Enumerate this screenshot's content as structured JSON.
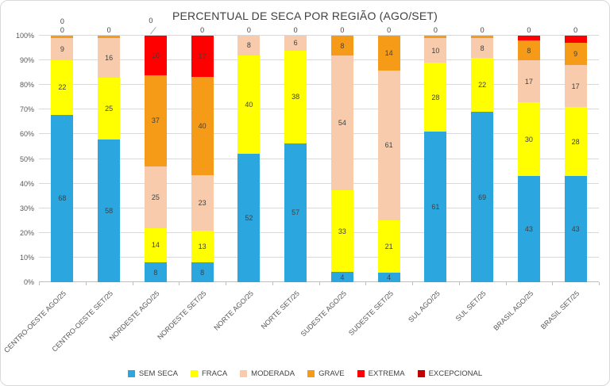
{
  "chart_data": {
    "type": "bar",
    "stacked": true,
    "percent": true,
    "title": "PERCENTUAL DE SECA POR REGIÃO (AGO/SET)",
    "categories": [
      "CENTRO-OESTE AGO/25",
      "CENTRO-OESTE SET/25",
      "NORDESTE AGO/25",
      "NORDESTE SET/25",
      "NORTE AGO/25",
      "NORTE SET/25",
      "SUDESTE AGO/25",
      "SUDESTE SET/25",
      "SUL AGO/25",
      "SUL SET/25",
      "BRASIL AGO/25",
      "BRASIL SET/25"
    ],
    "series": [
      {
        "name": "SEM SECA",
        "color": "#2BA6DE",
        "values": [
          68,
          58,
          8,
          8,
          52,
          57,
          4,
          4,
          61,
          69,
          43,
          43
        ]
      },
      {
        "name": "FRACA",
        "color": "#FFFF00",
        "values": [
          22,
          25,
          14,
          13,
          40,
          38,
          33,
          21,
          28,
          22,
          30,
          28
        ]
      },
      {
        "name": "MODERADA",
        "color": "#F8CBAD",
        "values": [
          9,
          16,
          25,
          23,
          8,
          6,
          54,
          61,
          10,
          8,
          17,
          17
        ]
      },
      {
        "name": "GRAVE",
        "color": "#F59B18",
        "values": [
          1,
          1,
          37,
          40,
          0,
          0,
          8,
          14,
          1,
          1,
          8,
          9
        ]
      },
      {
        "name": "EXTREMA",
        "color": "#FE0000",
        "values": [
          0,
          0,
          16,
          17,
          0,
          0,
          0,
          0,
          0,
          0,
          2,
          3
        ]
      },
      {
        "name": "EXCEPCIONAL",
        "color": "#C00000",
        "values": [
          0,
          0,
          0,
          0,
          0,
          0,
          0,
          0,
          0,
          0,
          0,
          0
        ]
      }
    ],
    "above_labels": [
      [
        "0",
        "0"
      ],
      [
        "0"
      ],
      [
        "0"
      ],
      [
        "0"
      ],
      [
        "0"
      ],
      [
        "0"
      ],
      [
        "0"
      ],
      [
        "0"
      ],
      [
        "0"
      ],
      [
        "0"
      ],
      [
        "0"
      ],
      [
        "0"
      ]
    ],
    "callout_index": 2,
    "y_ticks": [
      "0%",
      "10%",
      "20%",
      "30%",
      "40%",
      "50%",
      "60%",
      "70%",
      "80%",
      "90%",
      "100%"
    ],
    "ylim": [
      0,
      100
    ],
    "grid": true,
    "label_threshold": 4,
    "legend_position": "bottom",
    "colors": {
      "grid": "#D9D9D9",
      "axis": "#BFBFBF",
      "tick_text": "#595959",
      "title_text": "#404040",
      "value_label": "#404040"
    }
  }
}
